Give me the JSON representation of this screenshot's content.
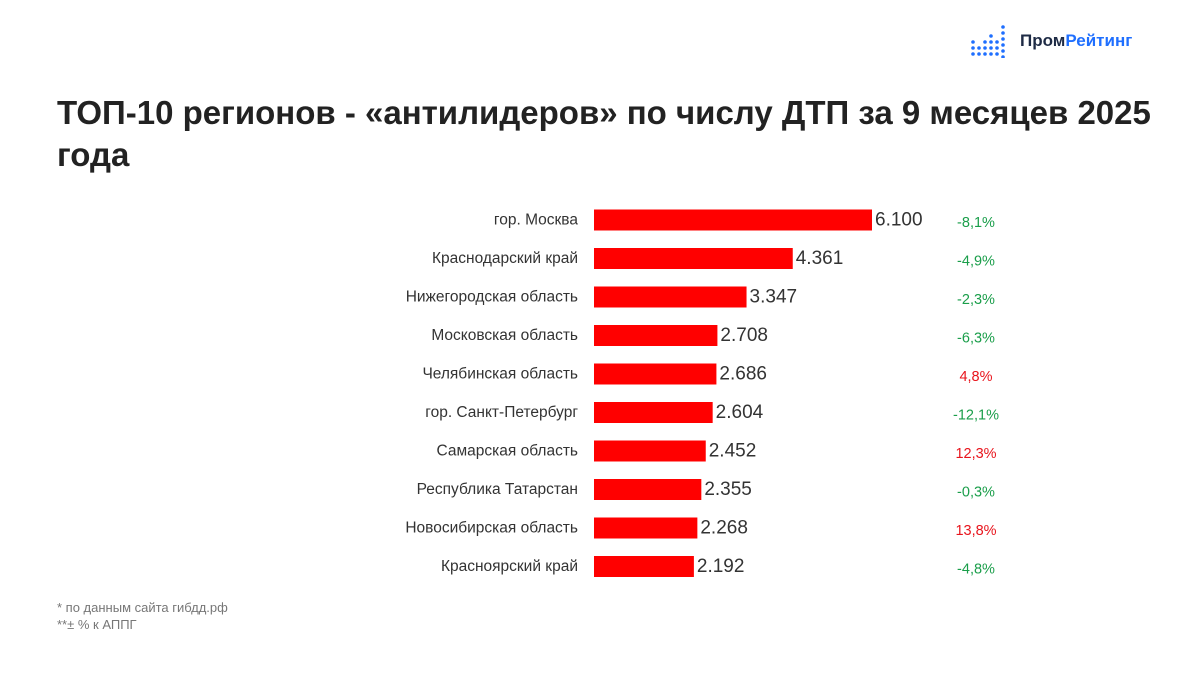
{
  "brand": {
    "name_part1": "Пром",
    "name_part2": "Рейтинг",
    "icon": "dot-matrix-bars-icon",
    "colors": {
      "dark": "#1e2b45",
      "accent": "#1f6fff"
    }
  },
  "title": "ТОП-10 регионов - «антилидеров» по числу ДТП за 9 месяцев 2025 года",
  "chart_data": {
    "type": "bar",
    "orientation": "horizontal",
    "categories": [
      "гор. Москва",
      "Краснодарский край",
      "Нижегородская область",
      "Московская область",
      "Челябинская область",
      "гор. Санкт-Петербург",
      "Самарская область",
      "Республика Татарстан",
      "Новосибирская область",
      "Красноярский край"
    ],
    "values": [
      6100,
      4361,
      3347,
      2708,
      2686,
      2604,
      2452,
      2355,
      2268,
      2192
    ],
    "value_labels": [
      "6.100",
      "4.361",
      "3.347",
      "2.708",
      "2.686",
      "2.604",
      "2.452",
      "2.355",
      "2.268",
      "2.192"
    ],
    "change_labels": [
      "-8,1%",
      "-4,9%",
      "-2,3%",
      "-6,3%",
      "4,8%",
      "-12,1%",
      "12,3%",
      "-0,3%",
      "13,8%",
      "-4,8%"
    ],
    "change_values": [
      -8.1,
      -4.9,
      -2.3,
      -6.3,
      4.8,
      -12.1,
      12.3,
      -0.3,
      13.8,
      -4.8
    ],
    "xlim": [
      0,
      6100
    ],
    "grid": false,
    "legend": "none",
    "colors": {
      "bar": "#ff0000",
      "decrease": "#1a9e4a",
      "increase": "#e8141c"
    }
  },
  "footnotes": [
    "* по данным сайта гибдд.рф",
    "**± % к АППГ"
  ]
}
